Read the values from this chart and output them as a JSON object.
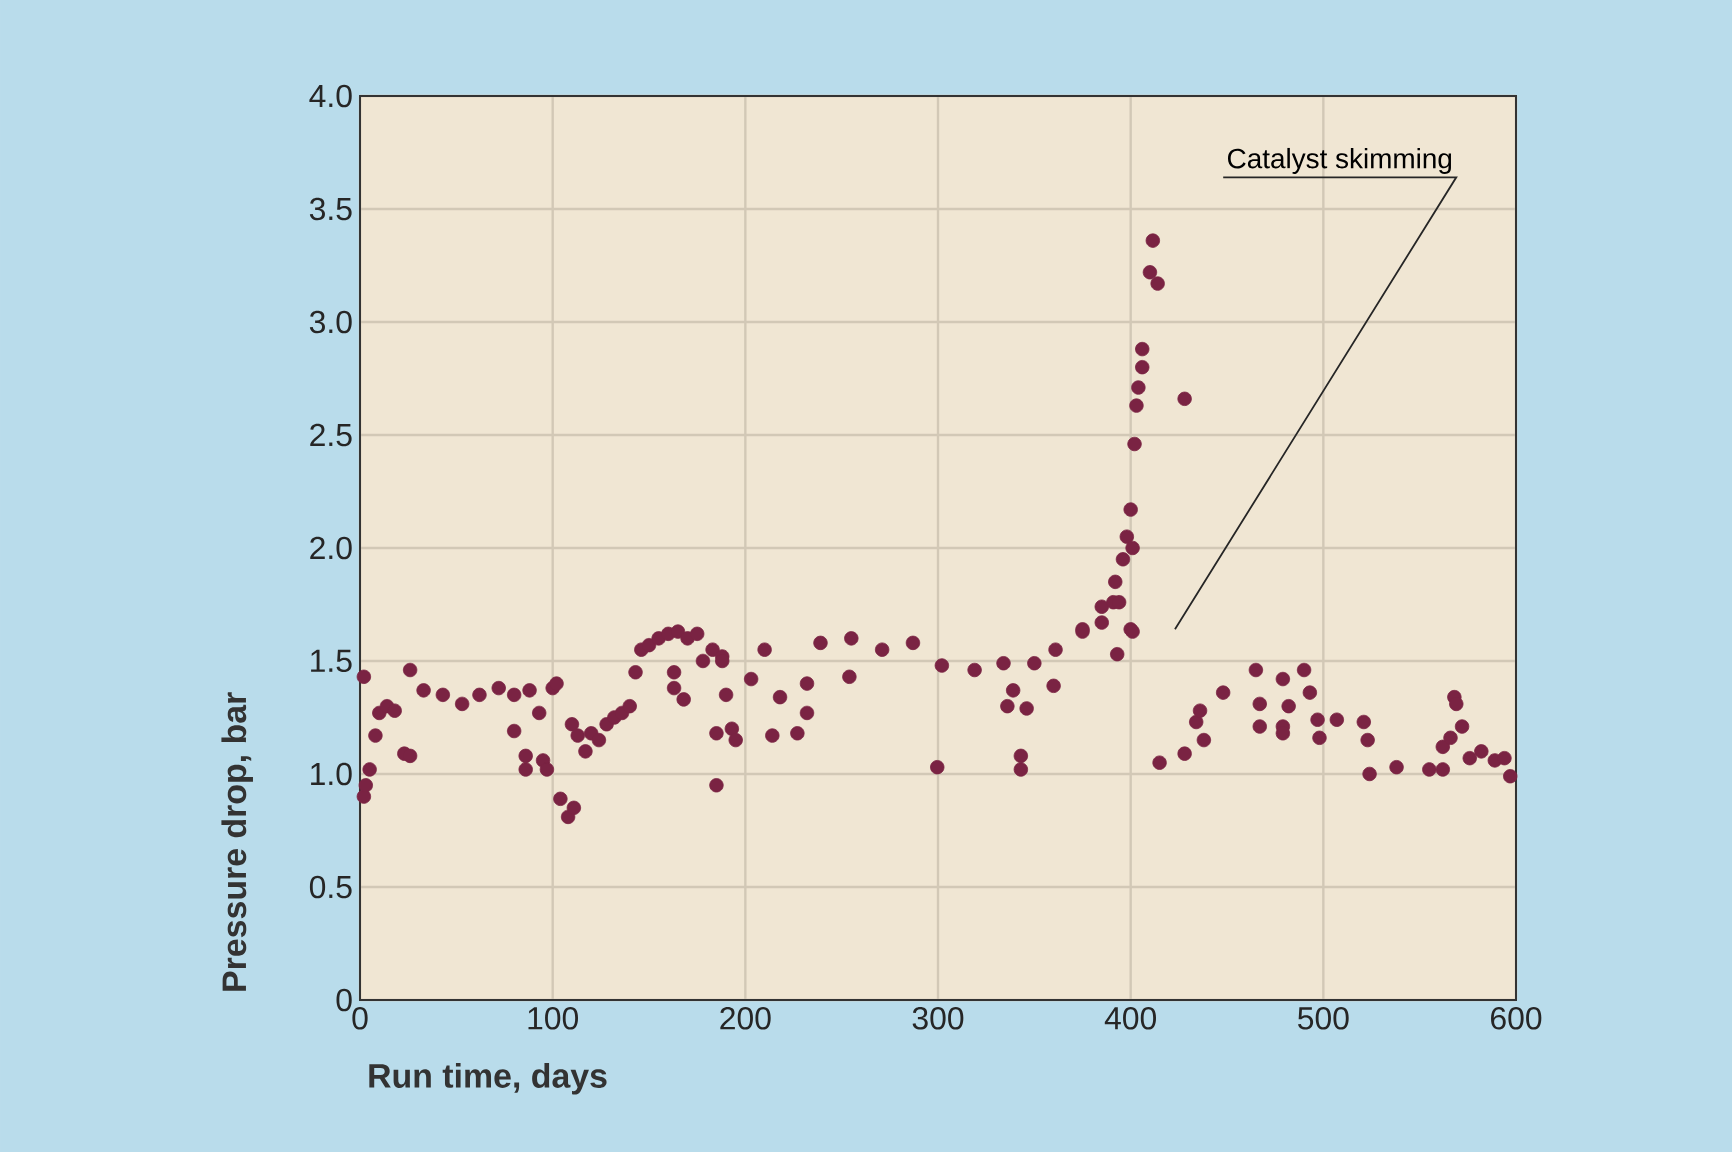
{
  "chart_data": {
    "type": "scatter",
    "xlabel": "Run time, days",
    "ylabel": "Pressure drop, bar",
    "xlim": [
      0,
      600
    ],
    "xticks": [
      0,
      100,
      200,
      300,
      400,
      500,
      600
    ],
    "ylim": [
      0,
      4.0
    ],
    "yticks": [
      0,
      {
        "value": 0.5,
        "label": "0.5"
      },
      {
        "value": 1,
        "label": "1.0"
      },
      {
        "value": 1.5,
        "label": "1.5"
      },
      {
        "value": 2,
        "label": "2.0"
      },
      {
        "value": 2.5,
        "label": "2.5"
      },
      {
        "value": 3,
        "label": "3.0"
      },
      {
        "value": 3.5,
        "label": "3.5"
      },
      {
        "value": 4,
        "label": "4.0"
      }
    ],
    "grid": true,
    "marker": "circle",
    "annotations": [
      "Catalyst skimming"
    ],
    "series": [
      {
        "color": "#7a2343",
        "x": [
          2,
          2,
          3,
          5,
          8,
          10,
          14,
          18,
          23,
          26,
          26,
          33,
          43,
          53,
          62,
          72,
          80,
          80,
          86,
          86,
          88,
          93,
          95,
          97,
          100,
          102,
          104,
          108,
          111,
          110,
          113,
          117,
          120,
          124,
          128,
          132,
          136,
          140,
          143,
          146,
          150,
          155,
          160,
          163,
          163,
          165,
          168,
          170,
          175,
          178,
          183,
          185,
          185,
          188,
          188,
          190,
          193,
          195,
          203,
          210,
          214,
          218,
          227,
          232,
          232,
          239,
          254,
          255,
          271,
          287,
          299.6,
          302,
          319,
          334,
          336,
          339,
          343,
          343,
          346,
          350,
          360,
          361,
          375,
          375,
          385,
          385,
          391,
          392,
          393,
          394,
          396,
          398,
          400,
          400,
          401,
          401,
          402,
          403,
          404,
          406,
          406,
          410,
          411.5,
          414,
          415,
          428,
          428,
          434,
          436,
          438,
          448,
          465,
          467,
          467,
          479,
          479,
          479,
          482,
          490,
          493,
          497,
          498,
          507,
          521,
          523,
          524,
          538,
          555,
          562,
          562,
          566,
          568,
          569,
          572,
          576,
          582,
          589,
          594,
          597
        ],
        "values": [
          1.43,
          0.9,
          0.95,
          1.02,
          1.17,
          1.27,
          1.3,
          1.28,
          1.09,
          1.46,
          1.08,
          1.37,
          1.35,
          1.31,
          1.35,
          1.38,
          1.35,
          1.19,
          1.08,
          1.02,
          1.37,
          1.27,
          1.06,
          1.02,
          1.38,
          1.4,
          0.89,
          0.81,
          0.85,
          1.22,
          1.17,
          1.1,
          1.18,
          1.15,
          1.22,
          1.25,
          1.27,
          1.3,
          1.45,
          1.55,
          1.57,
          1.6,
          1.62,
          1.45,
          1.38,
          1.63,
          1.33,
          1.6,
          1.62,
          1.5,
          1.55,
          0.95,
          1.18,
          1.52,
          1.5,
          1.35,
          1.2,
          1.15,
          1.42,
          1.55,
          1.17,
          1.34,
          1.18,
          1.27,
          1.4,
          1.58,
          1.43,
          1.6,
          1.55,
          1.58,
          1.03,
          1.48,
          1.46,
          1.49,
          1.3,
          1.37,
          1.08,
          1.02,
          1.29,
          1.49,
          1.39,
          1.55,
          1.64,
          1.63,
          1.74,
          1.67,
          1.76,
          1.85,
          1.53,
          1.76,
          1.95,
          2.05,
          2.17,
          1.64,
          2.0,
          1.63,
          2.46,
          2.63,
          2.71,
          2.8,
          2.88,
          3.22,
          3.36,
          3.17,
          1.05,
          2.66,
          1.09,
          1.23,
          1.28,
          1.15,
          1.36,
          1.46,
          1.31,
          1.21,
          1.42,
          1.21,
          1.18,
          1.3,
          1.46,
          1.36,
          1.24,
          1.16,
          1.24,
          1.23,
          1.15,
          1.0,
          1.03,
          1.02,
          1.02,
          1.12,
          1.16,
          1.34,
          1.31,
          1.21,
          1.07,
          1.1,
          1.06,
          1.07,
          0.99
        ]
      }
    ]
  }
}
